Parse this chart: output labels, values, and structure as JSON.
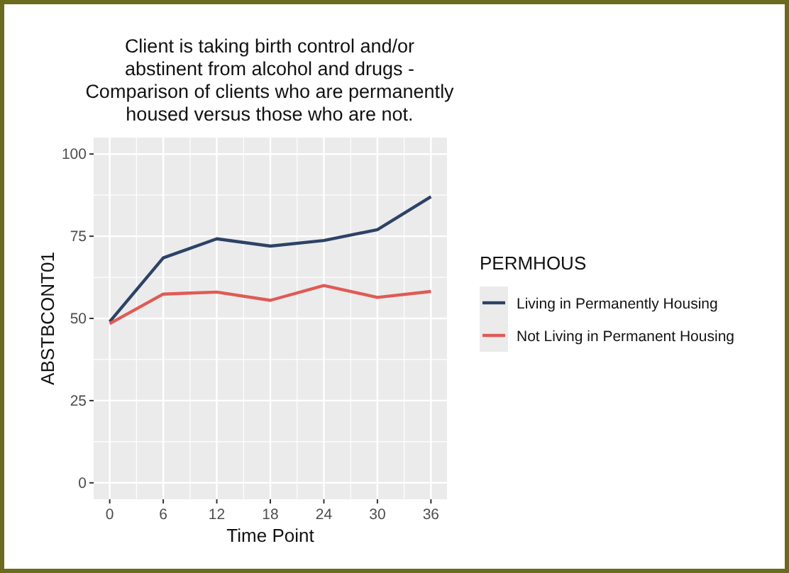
{
  "chart_data": {
    "type": "line",
    "title": "Client is taking birth control and/or\nabstinent from alcohol and drugs -\nComparison of clients who are permanently\nhoused versus those who are not.",
    "xlabel": "Time Point",
    "ylabel": "ABSTBCONT01",
    "legend_title": "PERMHOUS",
    "x": [
      0,
      6,
      12,
      18,
      24,
      30,
      36
    ],
    "series": [
      {
        "name": "Living in Permanently Housing",
        "color": "#2e4266",
        "values": [
          49,
          68.4,
          74.2,
          72,
          73.7,
          77,
          87
        ]
      },
      {
        "name": "Not Living in Permanent Housing",
        "color": "#e05a55",
        "values": [
          48.4,
          57.4,
          58,
          55.5,
          60,
          56.4,
          58.2
        ]
      }
    ],
    "xlim": [
      -1.8,
      37.8
    ],
    "xticks": [
      0,
      6,
      12,
      18,
      24,
      30,
      36
    ],
    "ylim": [
      -5,
      105
    ],
    "yticks": [
      0,
      25,
      50,
      75,
      100
    ],
    "grid": true,
    "legend": "right",
    "line_style": "solid",
    "marker": "none"
  }
}
